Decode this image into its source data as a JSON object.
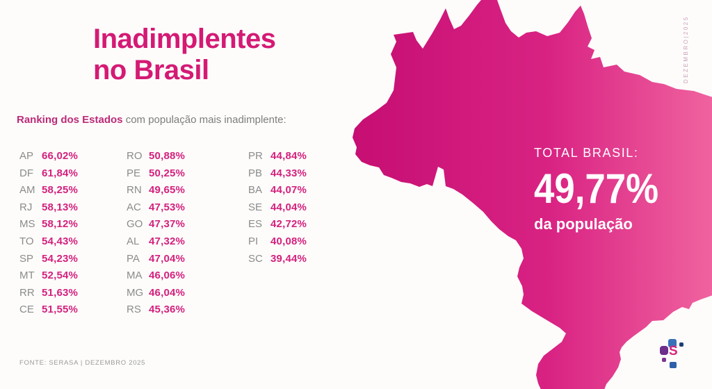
{
  "chart_data": {
    "type": "table",
    "title": "Inadimplentes no Brasil",
    "subtitle": "Ranking dos Estados com população mais inadimplente",
    "unit": "%",
    "states": [
      "AP",
      "DF",
      "AM",
      "RJ",
      "MS",
      "TO",
      "SP",
      "MT",
      "RR",
      "CE",
      "RO",
      "PE",
      "RN",
      "AC",
      "GO",
      "AL",
      "PA",
      "MA",
      "MG",
      "RS",
      "PR",
      "PB",
      "BA",
      "SE",
      "ES",
      "PI",
      "SC"
    ],
    "values": [
      66.02,
      61.84,
      58.25,
      58.13,
      58.12,
      54.43,
      54.23,
      52.54,
      51.63,
      51.55,
      50.88,
      50.25,
      49.65,
      47.53,
      47.37,
      47.32,
      47.04,
      46.06,
      46.04,
      45.36,
      44.84,
      44.33,
      44.07,
      44.04,
      42.72,
      40.08,
      39.44
    ],
    "total_brasil_pct": 49.77,
    "source": "SERASA | DEZEMBRO 2025"
  },
  "header": {
    "title_line1": "Inadimplentes",
    "title_line2": "no Brasil"
  },
  "subtitle": {
    "bold": "Ranking dos Estados",
    "rest": " com população mais inadimplente:"
  },
  "ranking": {
    "columns": [
      {
        "rows": [
          {
            "state": "AP",
            "value": "66,02%"
          },
          {
            "state": "DF",
            "value": "61,84%"
          },
          {
            "state": "AM",
            "value": "58,25%"
          },
          {
            "state": "RJ",
            "value": "58,13%"
          },
          {
            "state": "MS",
            "value": "58,12%"
          },
          {
            "state": "TO",
            "value": "54,43%"
          },
          {
            "state": "SP",
            "value": "54,23%"
          },
          {
            "state": "MT",
            "value": "52,54%"
          },
          {
            "state": "RR",
            "value": "51,63%"
          },
          {
            "state": "CE",
            "value": "51,55%"
          }
        ]
      },
      {
        "rows": [
          {
            "state": "RO",
            "value": "50,88%"
          },
          {
            "state": "PE",
            "value": "50,25%"
          },
          {
            "state": "RN",
            "value": "49,65%"
          },
          {
            "state": "AC",
            "value": "47,53%"
          },
          {
            "state": "GO",
            "value": "47,37%"
          },
          {
            "state": "AL",
            "value": "47,32%"
          },
          {
            "state": "PA",
            "value": "47,04%"
          },
          {
            "state": "MA",
            "value": "46,06%"
          },
          {
            "state": "MG",
            "value": "46,04%"
          },
          {
            "state": "RS",
            "value": "45,36%"
          }
        ]
      },
      {
        "rows": [
          {
            "state": "PR",
            "value": "44,84%"
          },
          {
            "state": "PB",
            "value": "44,33%"
          },
          {
            "state": "BA",
            "value": "44,07%"
          },
          {
            "state": "SE",
            "value": "44,04%"
          },
          {
            "state": "ES",
            "value": "42,72%"
          },
          {
            "state": "PI",
            "value": "40,08%"
          },
          {
            "state": "SC",
            "value": "39,44%"
          }
        ]
      }
    ]
  },
  "map": {
    "total_label": "TOTAL BRASIL:",
    "total_value": "49,77%",
    "total_sub": "da população",
    "fill_gradient": [
      "#c60e73",
      "#d92383",
      "#f0639f"
    ]
  },
  "side_date": "DEZEMBRO|2025",
  "footer": {
    "source": "FONTE: SERASA | DEZEMBRO 2025"
  },
  "logo": {
    "letter": "S",
    "colors": {
      "blue": "#3a72b9",
      "navy": "#1e3e75",
      "purple": "#6d2e8c",
      "purple_light": "#7c3591",
      "blue_dark": "#2e5fa9",
      "pink": "#d6257e"
    }
  },
  "colors": {
    "accent_pink": "#d41a74",
    "value_pink": "#d4207d",
    "label_gray": "#8b8b8b",
    "text_gray": "#7d7d7d",
    "date_pink": "#c9a0b8",
    "background": "#fdfcfb"
  }
}
